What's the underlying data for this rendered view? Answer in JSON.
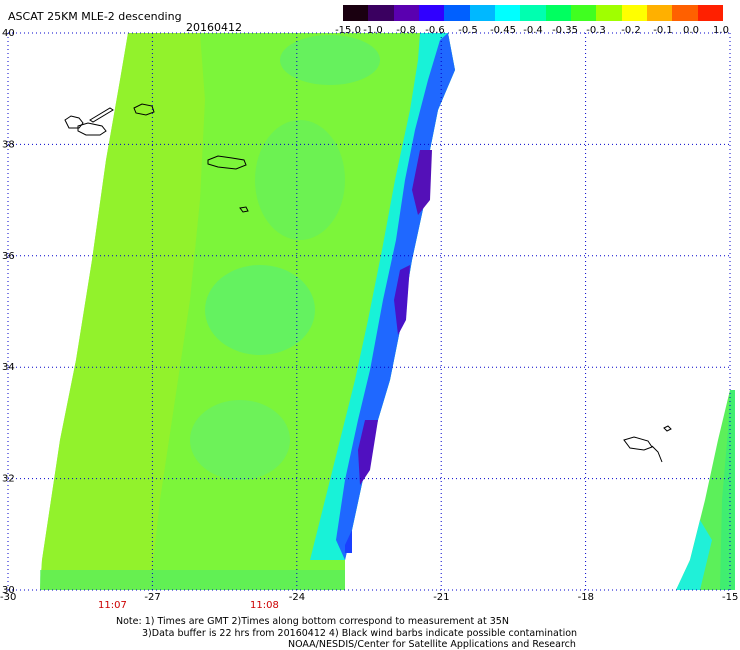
{
  "header": {
    "title": "ASCAT 25KM MLE-2 descending",
    "date": "20160412"
  },
  "colorbar": {
    "labels": [
      "-15.0",
      "-1.0",
      "-0.8",
      "-0.6",
      "-0.5",
      "-0.45",
      "-0.4",
      "-0.35",
      "-0.3",
      "-0.2",
      "-0.1",
      "0.0",
      "1.0"
    ],
    "colors": [
      "#1a0010",
      "#3a0060",
      "#5a00b0",
      "#3000ff",
      "#0060ff",
      "#00b8ff",
      "#00ffff",
      "#00ffb0",
      "#00ff60",
      "#40ff20",
      "#a0ff00",
      "#ffff00",
      "#ffb000",
      "#ff6000",
      "#ff2000"
    ]
  },
  "axes": {
    "x_labels": [
      "-30",
      "-27",
      "-24",
      "-21",
      "-18",
      "-15"
    ],
    "y_labels": [
      "40",
      "38",
      "36",
      "34",
      "32",
      "30"
    ],
    "x_range": [
      -30,
      -15
    ],
    "y_range": [
      30,
      40
    ]
  },
  "times": [
    "11:07",
    "11:08"
  ],
  "notes": {
    "line1": "Note: 1) Times are GMT 2)Times along bottom correspond to measurement at 35N",
    "line2": "3)Data buffer is 22 hrs from 20160412 4) Black wind barbs indicate possible contamination",
    "line3": "NOAA/NESDIS/Center for Satellite Applications and Research"
  },
  "colors": {
    "swath_main": "#7cf53a",
    "swath_light": "#a2f224",
    "grid": "#0000cc",
    "time_label": "#cc0000"
  }
}
